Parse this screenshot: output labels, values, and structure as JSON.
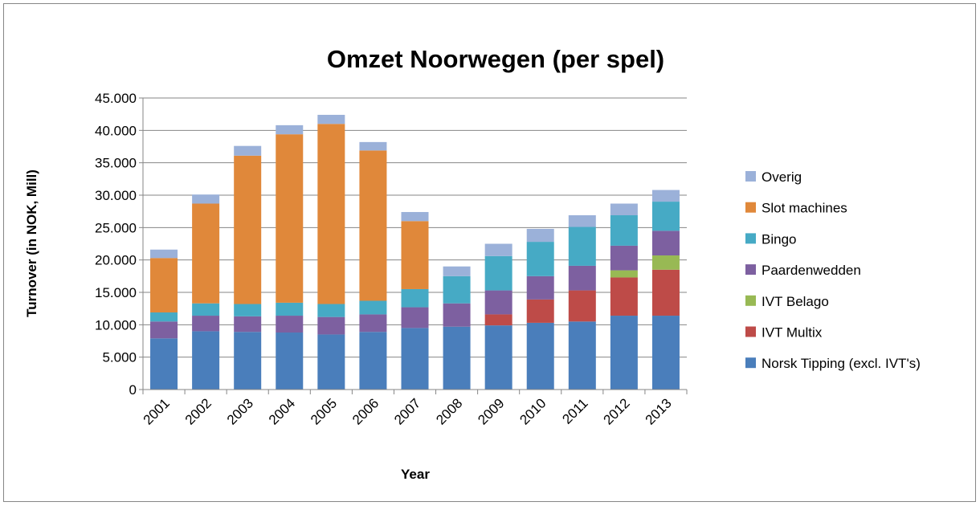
{
  "chart_data": {
    "type": "stacked_bar",
    "title": "Omzet Noorwegen (per spel)",
    "x_label": "Year",
    "y_label": "Turnover (in NOK, Mill)",
    "categories": [
      "2001",
      "2002",
      "2003",
      "2004",
      "2005",
      "2006",
      "2007",
      "2008",
      "2009",
      "2010",
      "2011",
      "2012",
      "2013"
    ],
    "series": [
      {
        "name": "Norsk Tipping (excl. IVT's)",
        "color": "#4a7ebb",
        "values": [
          7900,
          9000,
          8900,
          8800,
          8500,
          8900,
          9500,
          9700,
          9900,
          10300,
          10500,
          11400,
          11400
        ]
      },
      {
        "name": "IVT Multix",
        "color": "#be4b48",
        "values": [
          0,
          0,
          0,
          0,
          0,
          0,
          0,
          0,
          1700,
          3600,
          4800,
          5900,
          7100
        ]
      },
      {
        "name": "IVT Belago",
        "color": "#98b954",
        "values": [
          0,
          0,
          0,
          0,
          0,
          0,
          0,
          0,
          0,
          0,
          0,
          1100,
          2200
        ]
      },
      {
        "name": "Paardenwedden",
        "color": "#7d60a0",
        "values": [
          2600,
          2400,
          2400,
          2600,
          2700,
          2700,
          3200,
          3600,
          3700,
          3600,
          3800,
          3800,
          3800
        ]
      },
      {
        "name": "Bingo",
        "color": "#46aac5",
        "values": [
          1400,
          1900,
          1900,
          2000,
          2000,
          2100,
          2800,
          4200,
          5300,
          5300,
          6000,
          4700,
          4500
        ]
      },
      {
        "name": "Slot machines",
        "color": "#e0883a",
        "values": [
          8400,
          15400,
          22900,
          26000,
          27800,
          23200,
          10500,
          0,
          0,
          0,
          0,
          0,
          0
        ]
      },
      {
        "name": "Overig",
        "color": "#9bb1d9",
        "values": [
          1300,
          1400,
          1500,
          1400,
          1400,
          1300,
          1400,
          1500,
          1900,
          2000,
          1800,
          1800,
          1800
        ]
      }
    ],
    "ylim": [
      0,
      45000
    ],
    "yticks": [
      0,
      {
        "value": 5000,
        "label": "5.000"
      },
      {
        "value": 10000,
        "label": "10.000"
      },
      {
        "value": 15000,
        "label": "15.000"
      },
      {
        "value": 20000,
        "label": "20.000"
      },
      {
        "value": 25000,
        "label": "25.000"
      },
      {
        "value": 30000,
        "label": "30.000"
      },
      {
        "value": 35000,
        "label": "35.000"
      },
      {
        "value": 40000,
        "label": "40.000"
      },
      {
        "value": 45000,
        "label": "45.000"
      }
    ],
    "grid": true,
    "legend": "right"
  }
}
